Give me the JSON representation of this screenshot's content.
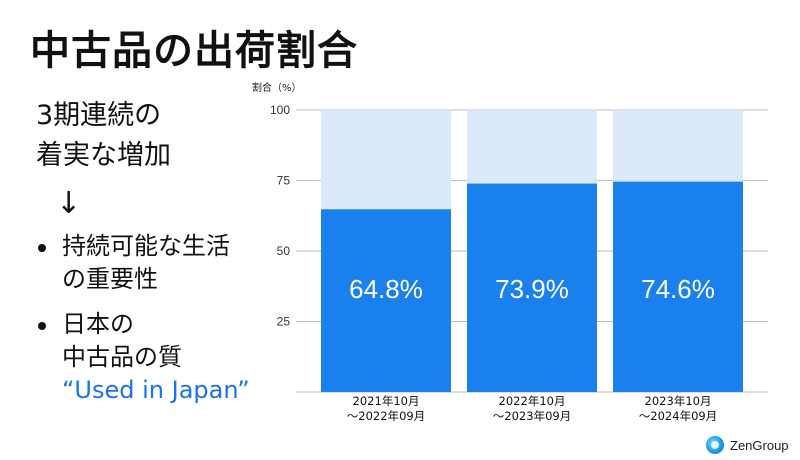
{
  "title": "中古品の出荷割合",
  "lead": {
    "line1": "3期連続の",
    "line2": "着実な増加"
  },
  "arrow": "↓",
  "bullets": [
    {
      "lines": [
        "持続可能な生活",
        "の重要性"
      ]
    },
    {
      "lines": [
        "日本の",
        "中古品の質"
      ],
      "accent": "“Used in Japan”"
    }
  ],
  "logo": {
    "text": "ZenGroup"
  },
  "colors": {
    "bar": "#1a80ee",
    "track": "#dbe9fb",
    "grid": "#bdbdbd",
    "accent": "#1a73e8"
  },
  "chart_data": {
    "type": "bar",
    "title": "",
    "ylabel": "割合（%）",
    "xlabel": "",
    "ylim": [
      0,
      100
    ],
    "yticks": [
      25,
      50,
      75,
      100
    ],
    "grid": true,
    "stacked_to_total": 100,
    "categories": [
      [
        "2021年10月",
        "～2022年09月"
      ],
      [
        "2022年10月",
        "～2023年09月"
      ],
      [
        "2023年10月",
        "～2024年09月"
      ]
    ],
    "values": [
      64.8,
      73.9,
      74.6
    ],
    "data_labels": [
      "64.8%",
      "73.9%",
      "74.6%"
    ]
  }
}
